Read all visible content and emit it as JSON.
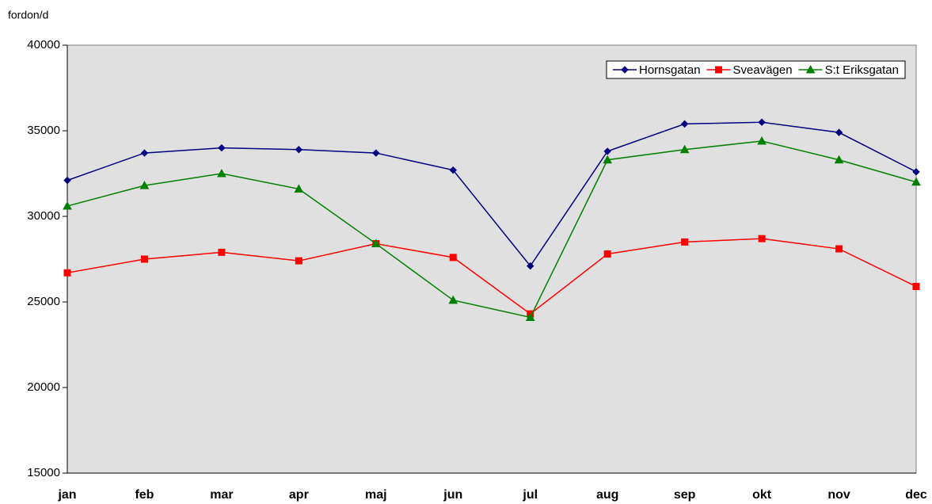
{
  "chart_data": {
    "type": "line",
    "y_axis_label": "fordon/d",
    "categories": [
      "jan",
      "feb",
      "mar",
      "apr",
      "maj",
      "jun",
      "jul",
      "aug",
      "sep",
      "okt",
      "nov",
      "dec"
    ],
    "series": [
      {
        "name": "Hornsgatan",
        "color": "#000080",
        "marker": "diamond",
        "values": [
          32100,
          33700,
          34000,
          33900,
          33700,
          32700,
          27100,
          33800,
          35400,
          35500,
          34900,
          32600
        ]
      },
      {
        "name": "Sveavägen",
        "color": "#ff0000",
        "marker": "square",
        "values": [
          26700,
          27500,
          27900,
          27400,
          28400,
          27600,
          24300,
          27800,
          28500,
          28700,
          28100,
          25900
        ]
      },
      {
        "name": "S:t Eriksgatan",
        "color": "#008000",
        "marker": "triangle",
        "values": [
          30600,
          31800,
          32500,
          31600,
          28400,
          25100,
          24100,
          33300,
          33900,
          34400,
          33300,
          32000
        ]
      }
    ],
    "ylim": [
      15000,
      40000
    ],
    "yticks": [
      15000,
      20000,
      25000,
      30000,
      35000,
      40000
    ],
    "grid": false,
    "legend": "top-right",
    "plot_background": "#e0e0e0"
  }
}
